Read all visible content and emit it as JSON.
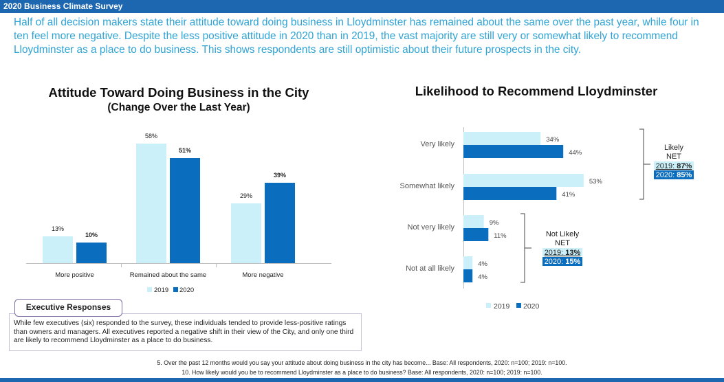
{
  "header": {
    "title": "2020 Business Climate Survey"
  },
  "intro": "Half of all decision makers state their attitude toward doing business in Lloydminster has remained about the same over the past year, while four in ten feel more negative. Despite the less positive attitude in 2020 than in 2019, the vast majority are still very or somewhat likely to recommend Lloydminster as a place to do business. This shows respondents are still optimistic about their future prospects in the city.",
  "colors": {
    "series_2019": "#ccf0fa",
    "series_2020": "#0b6dbd",
    "accent": "#2ea3d6",
    "header": "#1d67b0"
  },
  "chart_data": [
    {
      "type": "bar",
      "title": "Attitude Toward Doing Business in the City",
      "subtitle": "(Change Over the Last Year)",
      "categories": [
        "More positive",
        "Remained about the same",
        "More negative"
      ],
      "series": [
        {
          "name": "2019",
          "values": [
            13,
            58,
            29
          ],
          "labels": [
            "13%",
            "58%",
            "29%"
          ]
        },
        {
          "name": "2020",
          "values": [
            10,
            51,
            39
          ],
          "labels": [
            "10%",
            "51%",
            "39%"
          ]
        }
      ],
      "legend": [
        "2019",
        "2020"
      ],
      "legend_position": "bottom"
    },
    {
      "type": "bar",
      "orientation": "horizontal",
      "title": "Likelihood to Recommend Lloydminster",
      "categories": [
        "Very likely",
        "Somewhat likely",
        "Not very likely",
        "Not at all likely"
      ],
      "series": [
        {
          "name": "2019",
          "values": [
            34,
            53,
            9,
            4
          ],
          "labels": [
            "34%",
            "53%",
            "9%",
            "4%"
          ]
        },
        {
          "name": "2020",
          "values": [
            44,
            41,
            11,
            4
          ],
          "labels": [
            "44%",
            "41%",
            "11%",
            "4%"
          ]
        }
      ],
      "legend": [
        "2019",
        "2020"
      ],
      "legend_position": "bottom",
      "annotations": {
        "likely_net": {
          "label": "Likely",
          "net": "NET",
          "prefix_2019": "2019: ",
          "value_2019": "87%",
          "prefix_2020": "2020: ",
          "value_2020": "85%"
        },
        "not_likely_net": {
          "label": "Not Likely",
          "net": "NET",
          "prefix_2019": "2019: ",
          "value_2019": "13%",
          "prefix_2020": "2020: ",
          "value_2020": "15%"
        }
      }
    }
  ],
  "executive": {
    "title": "Executive Responses",
    "text": "While few executives (six) responded to the survey, these individuals tended to provide less-positive ratings than owners and managers. All executives reported a negative shift in their view of the City, and only one third are likely to recommend Lloydminster as a place to do business."
  },
  "footnotes": [
    "5. Over the past 12 months would you say your attitude about doing business in the city has become... Base: All respondents, 2020: n=100; 2019: n=100.",
    "10. How likely would you be to recommend Lloydminster as a place to do business? Base: All respondents, 2020: n=100; 2019: n=100."
  ]
}
